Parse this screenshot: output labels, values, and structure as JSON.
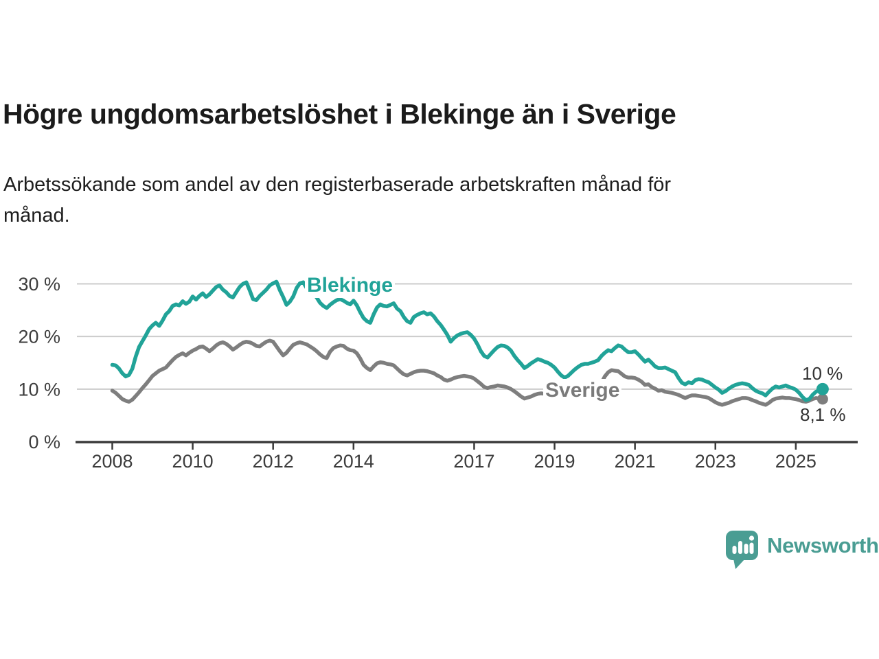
{
  "header": {
    "title": "Högre ungdomsarbetslöshet i Blekinge än i Sverige",
    "subtitle": "Arbetssökande som andel av den registerbaserade arbetskraften månad för\nmånad."
  },
  "chart_data": {
    "type": "line",
    "title": "Högre ungdomsarbetslöshet i Blekinge än i Sverige",
    "subtitle": "Arbetssökande som andel av den registerbaserade arbetskraften månad för månad.",
    "xlabel": "",
    "ylabel": "",
    "xlim": [
      2008,
      2025.67
    ],
    "ylim": [
      0,
      32
    ],
    "grid": "horizontal",
    "legend_position": "inline-labels",
    "y_ticks": [
      {
        "value": 0,
        "label": "0 %"
      },
      {
        "value": 10,
        "label": "10 %"
      },
      {
        "value": 20,
        "label": "20 %"
      },
      {
        "value": 30,
        "label": "30 %"
      }
    ],
    "x_ticks": [
      {
        "value": 2008,
        "label": "2008"
      },
      {
        "value": 2010,
        "label": "2010"
      },
      {
        "value": 2012,
        "label": "2012"
      },
      {
        "value": 2014,
        "label": "2014"
      },
      {
        "value": 2017,
        "label": "2017"
      },
      {
        "value": 2019,
        "label": "2019"
      },
      {
        "value": 2021,
        "label": "2021"
      },
      {
        "value": 2023,
        "label": "2023"
      },
      {
        "value": 2025,
        "label": "2025"
      }
    ],
    "series": [
      {
        "name": "Blekinge",
        "inline_label": "Blekinge",
        "color": "#21a398",
        "end_label": "10 %",
        "end_value": 10.0,
        "start_year": 2008,
        "points_per_year": 12,
        "values": [
          14.6,
          14.5,
          13.9,
          13.0,
          12.4,
          12.7,
          13.9,
          16.2,
          18.0,
          19.1,
          20.2,
          21.4,
          22.1,
          22.6,
          22.0,
          23.0,
          24.2,
          24.8,
          25.8,
          26.1,
          25.9,
          26.7,
          26.2,
          26.6,
          27.6,
          27.0,
          27.7,
          28.2,
          27.5,
          28.0,
          28.7,
          29.4,
          29.7,
          28.9,
          28.4,
          27.7,
          27.4,
          28.4,
          29.4,
          30.0,
          30.3,
          28.8,
          27.1,
          26.9,
          27.7,
          28.3,
          28.9,
          29.7,
          30.1,
          30.4,
          28.8,
          27.5,
          26.0,
          26.6,
          27.6,
          29.2,
          30.1,
          30.3,
          29.2,
          28.7,
          28.2,
          27.4,
          26.4,
          25.8,
          25.4,
          26.0,
          26.5,
          26.9,
          27.1,
          26.8,
          26.4,
          26.1,
          26.8,
          25.9,
          24.6,
          23.5,
          22.9,
          22.6,
          24.2,
          25.5,
          26.1,
          25.8,
          25.7,
          26.0,
          26.3,
          25.3,
          24.8,
          23.7,
          22.9,
          22.6,
          23.7,
          24.1,
          24.4,
          24.6,
          24.2,
          24.4,
          23.8,
          22.9,
          22.2,
          21.3,
          20.3,
          19.0,
          19.7,
          20.2,
          20.5,
          20.7,
          20.8,
          20.3,
          19.6,
          18.5,
          17.2,
          16.3,
          16.0,
          16.7,
          17.4,
          18.0,
          18.3,
          18.2,
          17.9,
          17.3,
          16.3,
          15.5,
          14.8,
          14.0,
          14.4,
          14.9,
          15.3,
          15.7,
          15.5,
          15.2,
          15.0,
          14.6,
          14.1,
          13.3,
          12.6,
          12.2,
          12.5,
          13.1,
          13.7,
          14.2,
          14.6,
          14.8,
          14.8,
          15.0,
          15.2,
          15.5,
          16.3,
          16.9,
          17.4,
          17.2,
          17.8,
          18.3,
          18.1,
          17.5,
          17.0,
          17.0,
          17.2,
          16.6,
          15.9,
          15.2,
          15.6,
          15.0,
          14.3,
          14.0,
          14.0,
          14.1,
          13.8,
          13.5,
          13.2,
          12.1,
          11.2,
          10.9,
          11.3,
          11.1,
          11.7,
          11.9,
          11.8,
          11.5,
          11.3,
          10.8,
          10.3,
          9.9,
          9.3,
          9.6,
          10.1,
          10.5,
          10.8,
          11.0,
          11.1,
          11.0,
          10.8,
          10.2,
          9.7,
          9.4,
          9.2,
          8.8,
          9.5,
          10.1,
          10.5,
          10.3,
          10.5,
          10.7,
          10.4,
          10.2,
          9.9,
          9.3,
          8.5,
          7.9,
          8.1,
          8.9,
          9.5,
          9.8,
          10.0
        ]
      },
      {
        "name": "Sverige",
        "inline_label": "Sverige",
        "color": "#7e7e7e",
        "end_label": "8,1 %",
        "end_value": 8.1,
        "start_year": 2008,
        "points_per_year": 12,
        "values": [
          9.7,
          9.3,
          8.7,
          8.1,
          7.8,
          7.6,
          8.0,
          8.7,
          9.4,
          10.2,
          10.9,
          11.7,
          12.5,
          13.0,
          13.5,
          13.8,
          14.1,
          14.8,
          15.5,
          16.1,
          16.5,
          16.8,
          16.4,
          16.9,
          17.3,
          17.6,
          18.0,
          18.1,
          17.7,
          17.2,
          17.7,
          18.3,
          18.7,
          18.9,
          18.6,
          18.1,
          17.5,
          17.9,
          18.4,
          18.8,
          19.0,
          18.9,
          18.6,
          18.2,
          18.1,
          18.6,
          19.0,
          19.2,
          19.0,
          18.1,
          17.2,
          16.4,
          16.9,
          17.7,
          18.4,
          18.7,
          18.9,
          18.7,
          18.5,
          18.1,
          17.7,
          17.2,
          16.6,
          16.1,
          15.9,
          17.1,
          17.8,
          18.1,
          18.3,
          18.2,
          17.7,
          17.4,
          17.3,
          16.8,
          15.8,
          14.6,
          14.0,
          13.6,
          14.3,
          14.9,
          15.1,
          15.0,
          14.8,
          14.7,
          14.5,
          13.9,
          13.3,
          12.8,
          12.6,
          12.9,
          13.2,
          13.4,
          13.5,
          13.5,
          13.4,
          13.2,
          13.0,
          12.6,
          12.3,
          11.8,
          11.6,
          11.8,
          12.1,
          12.3,
          12.4,
          12.5,
          12.4,
          12.3,
          12.0,
          11.5,
          11.0,
          10.4,
          10.2,
          10.4,
          10.5,
          10.7,
          10.6,
          10.5,
          10.3,
          10.0,
          9.6,
          9.1,
          8.6,
          8.2,
          8.4,
          8.6,
          8.9,
          9.1,
          9.2,
          9.1,
          9.0,
          8.9,
          8.7,
          8.4,
          8.1,
          7.9,
          8.0,
          8.3,
          8.6,
          8.8,
          8.9,
          8.9,
          8.9,
          9.0,
          9.2,
          9.9,
          11.2,
          12.4,
          13.2,
          13.6,
          13.5,
          13.4,
          12.9,
          12.4,
          12.2,
          12.2,
          12.1,
          11.8,
          11.4,
          10.8,
          10.9,
          10.4,
          10.1,
          9.7,
          9.8,
          9.5,
          9.4,
          9.3,
          9.1,
          8.9,
          8.6,
          8.3,
          8.6,
          8.8,
          8.8,
          8.7,
          8.6,
          8.5,
          8.3,
          7.9,
          7.5,
          7.2,
          7.0,
          7.2,
          7.4,
          7.7,
          7.9,
          8.1,
          8.3,
          8.3,
          8.2,
          7.9,
          7.7,
          7.4,
          7.2,
          7.0,
          7.4,
          7.9,
          8.2,
          8.3,
          8.4,
          8.3,
          8.3,
          8.2,
          8.1,
          7.9,
          7.7,
          7.6,
          7.8,
          8.1,
          8.3,
          8.2,
          8.1
        ]
      }
    ]
  },
  "branding": {
    "name": "Newsworthy",
    "color": "#4a9d93"
  },
  "style": {
    "grid_color": "#cccccc",
    "axis_color": "#3a3a3a",
    "tick_label_color": "#3d3d3d"
  }
}
